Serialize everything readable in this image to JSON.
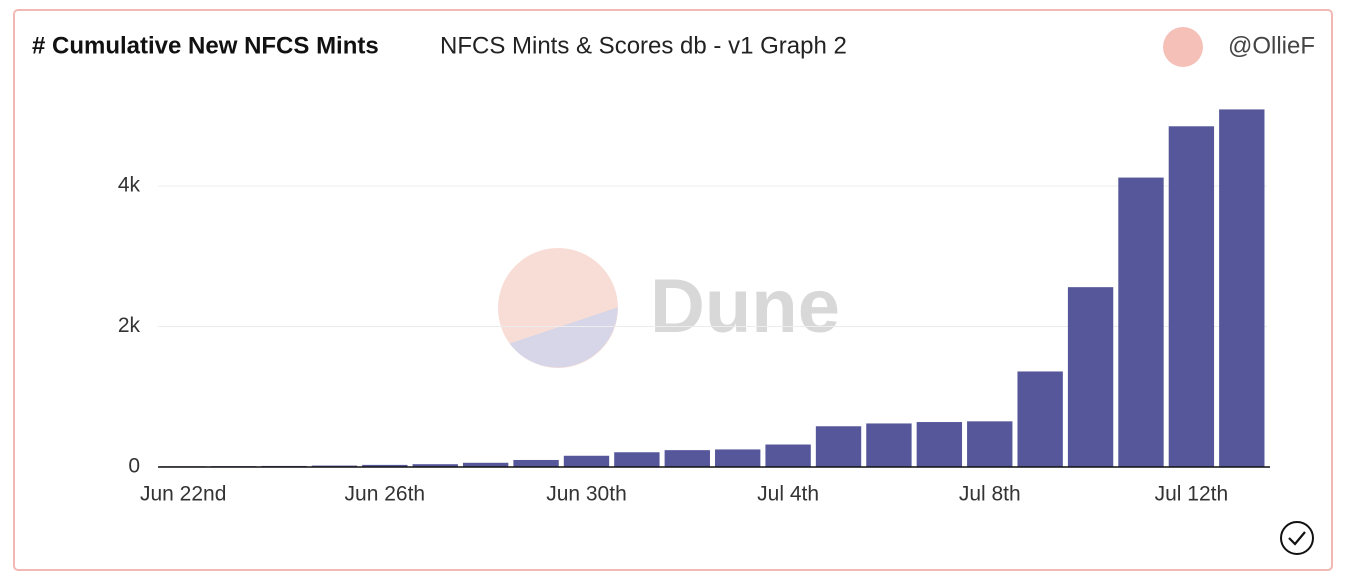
{
  "chart_data": {
    "type": "bar",
    "title": "# Cumulative New NFCS Mints",
    "subtitle": "NFCS Mints & Scores db - v1 Graph 2",
    "author": "@OllieF",
    "watermark": "Dune",
    "categories": [
      "Jun 22nd",
      null,
      null,
      null,
      "Jun 26th",
      null,
      null,
      null,
      "Jun 30th",
      null,
      null,
      null,
      "Jul 4th",
      null,
      null,
      null,
      "Jul 8th",
      null,
      null,
      null,
      "Jul 12th",
      null
    ],
    "values": [
      10,
      12,
      15,
      20,
      30,
      40,
      60,
      100,
      160,
      210,
      240,
      250,
      320,
      580,
      620,
      640,
      650,
      1360,
      2560,
      4120,
      4850,
      5090
    ],
    "color": "#55579a",
    "ylim": [
      0,
      5200
    ],
    "yticks": [
      0,
      {
        "value": 2000,
        "label": "2k"
      },
      {
        "value": 4000,
        "label": "4k"
      }
    ],
    "grid": true
  }
}
